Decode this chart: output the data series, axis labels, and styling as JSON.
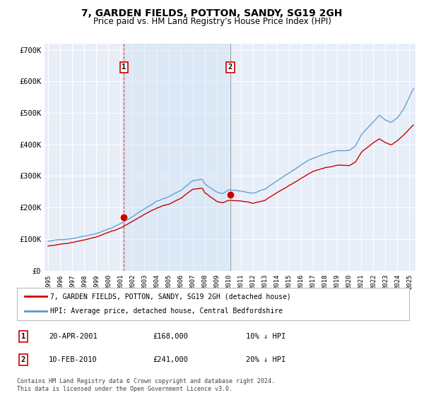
{
  "title": "7, GARDEN FIELDS, POTTON, SANDY, SG19 2GH",
  "subtitle": "Price paid vs. HM Land Registry's House Price Index (HPI)",
  "title_fontsize": 10,
  "subtitle_fontsize": 8.5,
  "background_color": "#ffffff",
  "plot_bg_color": "#e8eef8",
  "grid_color": "#ffffff",
  "red_line_color": "#cc0000",
  "blue_line_color": "#5599cc",
  "shade_color": "#ddeeff",
  "sale1": {
    "date_num": 2001.29,
    "price": 168000,
    "label": "1",
    "date_str": "20-APR-2001",
    "pct": "10% ↓ HPI"
  },
  "sale2": {
    "date_num": 2010.12,
    "price": 241000,
    "label": "2",
    "date_str": "10-FEB-2010",
    "pct": "20% ↓ HPI"
  },
  "ylim": [
    0,
    720000
  ],
  "xlim": [
    1994.7,
    2025.5
  ],
  "yticks": [
    0,
    100000,
    200000,
    300000,
    400000,
    500000,
    600000,
    700000
  ],
  "ytick_labels": [
    "£0",
    "£100K",
    "£200K",
    "£300K",
    "£400K",
    "£500K",
    "£600K",
    "£700K"
  ],
  "xticks": [
    1995,
    1996,
    1997,
    1998,
    1999,
    2000,
    2001,
    2002,
    2003,
    2004,
    2005,
    2006,
    2007,
    2008,
    2009,
    2010,
    2011,
    2012,
    2013,
    2014,
    2015,
    2016,
    2017,
    2018,
    2019,
    2020,
    2021,
    2022,
    2023,
    2024,
    2025
  ],
  "legend_label_red": "7, GARDEN FIELDS, POTTON, SANDY, SG19 2GH (detached house)",
  "legend_label_blue": "HPI: Average price, detached house, Central Bedfordshire",
  "footer": "Contains HM Land Registry data © Crown copyright and database right 2024.\nThis data is licensed under the Open Government Licence v3.0.",
  "sale1_price_fmt": "£168,000",
  "sale2_price_fmt": "£241,000"
}
